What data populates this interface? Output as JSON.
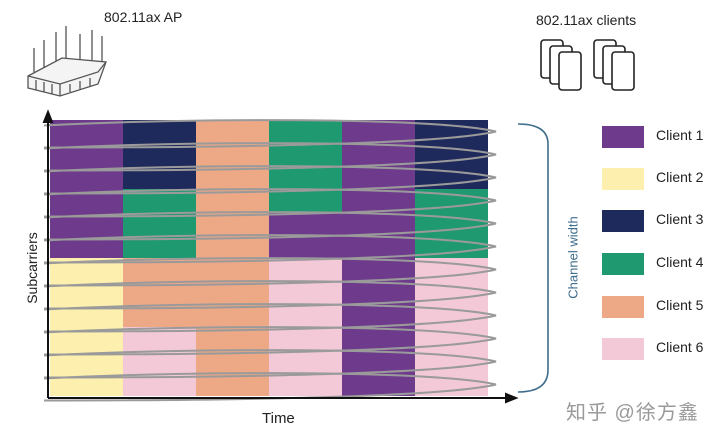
{
  "ap_label": "802.11ax AP",
  "clients_label": "802.11ax clients",
  "y_axis_label": "Subcarriers",
  "x_axis_label": "Time",
  "bracket_label": "Channel width",
  "watermark": "知乎 @徐方鑫",
  "legend": [
    {
      "label": "Client 1",
      "color": "#6e3b8c"
    },
    {
      "label": "Client 2",
      "color": "#fdf0ae"
    },
    {
      "label": "Client 3",
      "color": "#1f2a5c"
    },
    {
      "label": "Client 4",
      "color": "#1f9970"
    },
    {
      "label": "Client 5",
      "color": "#eda886"
    },
    {
      "label": "Client 6",
      "color": "#f3c9d8"
    }
  ],
  "grid": {
    "columns": 6,
    "rows": 12,
    "allocation": [
      [
        1,
        3,
        5,
        4,
        1,
        3
      ],
      [
        1,
        3,
        5,
        4,
        1,
        3
      ],
      [
        1,
        3,
        5,
        4,
        1,
        3
      ],
      [
        1,
        4,
        5,
        4,
        1,
        4
      ],
      [
        1,
        4,
        5,
        1,
        1,
        4
      ],
      [
        1,
        4,
        5,
        1,
        1,
        4
      ],
      [
        2,
        5,
        5,
        6,
        1,
        6
      ],
      [
        2,
        5,
        5,
        6,
        1,
        6
      ],
      [
        2,
        5,
        5,
        6,
        1,
        6
      ],
      [
        2,
        6,
        5,
        6,
        1,
        6
      ],
      [
        2,
        6,
        5,
        6,
        1,
        6
      ],
      [
        2,
        6,
        5,
        6,
        1,
        6
      ]
    ]
  },
  "icons": {
    "ap": "wifi-router-icon",
    "clients": "smartphone-stack-icon"
  }
}
